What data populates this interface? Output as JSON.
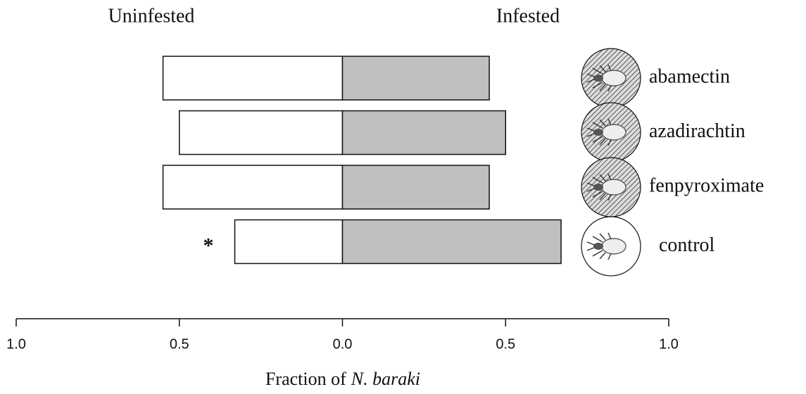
{
  "chart_data": {
    "type": "diverging-bar",
    "categories": [
      "abamectin",
      "azadirachtin",
      "fenpyroximate",
      "control"
    ],
    "series": [
      {
        "name": "Uninfested",
        "color": "#ffffff",
        "values": [
          -0.55,
          -0.5,
          -0.55,
          -0.33
        ]
      },
      {
        "name": "Infested",
        "color": "#c0c0c0",
        "values": [
          0.45,
          0.5,
          0.45,
          0.67
        ]
      }
    ],
    "xlim": [
      -1,
      1
    ],
    "xticks": [
      {
        "value": -1,
        "label": "1.0"
      },
      {
        "value": -0.5,
        "label": "0.5"
      },
      {
        "value": 0,
        "label": "0.0"
      },
      0.5,
      {
        "value": 1,
        "label": "1.0"
      }
    ],
    "xlabel": {
      "text": "Fraction of",
      "emphasis": "N. baraki"
    },
    "annotations": [
      {
        "text": "*",
        "category": "control"
      }
    ]
  }
}
